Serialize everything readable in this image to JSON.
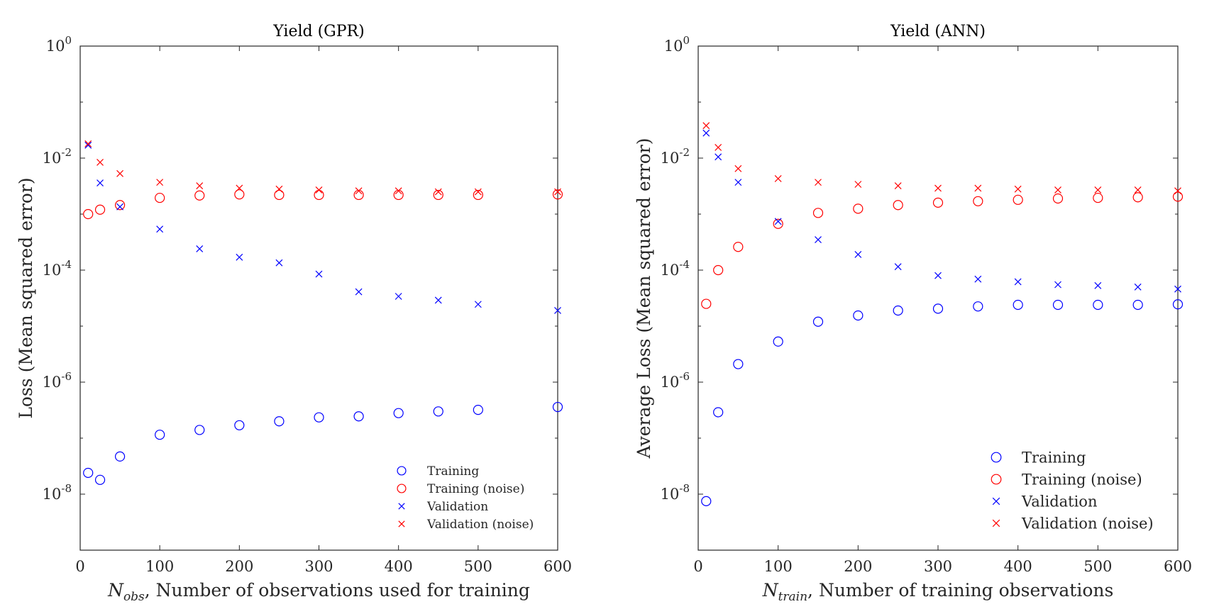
{
  "colors": {
    "training": "#0000ff",
    "training_noise": "#ff0000",
    "validation": "#0000ff",
    "validation_noise": "#ff0000",
    "axis": "#262626"
  },
  "chart_data": [
    {
      "type": "scatter",
      "title": "Yield (GPR)",
      "xlabel_prefix": "N",
      "xlabel_sub": "obs",
      "xlabel_rest": ", Number of observations used for training",
      "ylabel": "Loss (Mean squared error)",
      "xlim": [
        0,
        600
      ],
      "ylim": [
        1e-09,
        1
      ],
      "yscale": "log",
      "xticks": [
        0,
        100,
        200,
        300,
        400,
        500,
        600
      ],
      "yticks_exp": [
        0,
        -2,
        -4,
        -6,
        -8
      ],
      "legend_position": "bottom-right",
      "series": [
        {
          "name": "Training",
          "marker": "circle",
          "color": "#0000ff",
          "x": [
            10,
            25,
            50,
            100,
            150,
            200,
            250,
            300,
            350,
            400,
            450,
            500,
            600
          ],
          "y": [
            2.4e-08,
            1.8e-08,
            4.7e-08,
            1.15e-07,
            1.4e-07,
            1.7e-07,
            2e-07,
            2.35e-07,
            2.45e-07,
            2.8e-07,
            3e-07,
            3.2e-07,
            3.6e-07
          ]
        },
        {
          "name": "Training (noise)",
          "marker": "circle",
          "color": "#ff0000",
          "x": [
            10,
            25,
            50,
            100,
            150,
            200,
            250,
            300,
            350,
            400,
            450,
            500,
            600
          ],
          "y": [
            0.001,
            0.0012,
            0.00145,
            0.00195,
            0.00215,
            0.00225,
            0.0022,
            0.0022,
            0.0022,
            0.0022,
            0.0022,
            0.0022,
            0.00225
          ]
        },
        {
          "name": "Validation",
          "marker": "x",
          "color": "#0000ff",
          "x": [
            10,
            25,
            50,
            100,
            150,
            200,
            250,
            300,
            350,
            400,
            450,
            500,
            600
          ],
          "y": [
            0.017,
            0.0036,
            0.00135,
            0.00054,
            0.00024,
            0.00017,
            0.000135,
            8.5e-05,
            4.1e-05,
            3.4e-05,
            2.9e-05,
            2.45e-05,
            1.9e-05
          ]
        },
        {
          "name": "Validation (noise)",
          "marker": "x",
          "color": "#ff0000",
          "x": [
            10,
            25,
            50,
            100,
            150,
            200,
            250,
            300,
            350,
            400,
            450,
            500,
            600
          ],
          "y": [
            0.018,
            0.0084,
            0.0053,
            0.0037,
            0.0032,
            0.0029,
            0.0028,
            0.0027,
            0.0026,
            0.0026,
            0.0025,
            0.0025,
            0.0025
          ]
        }
      ]
    },
    {
      "type": "scatter",
      "title": "Yield (ANN)",
      "xlabel_prefix": "N",
      "xlabel_sub": "train",
      "xlabel_rest": ", Number of training observations",
      "ylabel": "Average Loss (Mean squared error)",
      "xlim": [
        0,
        600
      ],
      "ylim": [
        1e-09,
        1
      ],
      "yscale": "log",
      "xticks": [
        0,
        100,
        200,
        300,
        400,
        500,
        600
      ],
      "yticks_exp": [
        0,
        -2,
        -4,
        -6,
        -8
      ],
      "legend_position": "bottom-right",
      "series": [
        {
          "name": "Training",
          "marker": "circle",
          "color": "#0000ff",
          "x": [
            10,
            25,
            50,
            100,
            150,
            200,
            250,
            300,
            350,
            400,
            450,
            500,
            550,
            600
          ],
          "y": [
            7.5e-09,
            2.9e-07,
            2.1e-06,
            5.3e-06,
            1.2e-05,
            1.55e-05,
            1.9e-05,
            2.05e-05,
            2.25e-05,
            2.4e-05,
            2.4e-05,
            2.4e-05,
            2.4e-05,
            2.45e-05
          ]
        },
        {
          "name": "Training (noise)",
          "marker": "circle",
          "color": "#ff0000",
          "x": [
            10,
            25,
            50,
            100,
            150,
            200,
            250,
            300,
            350,
            400,
            450,
            500,
            550,
            600
          ],
          "y": [
            2.5e-05,
            0.0001,
            0.00026,
            0.00067,
            0.00105,
            0.00125,
            0.00145,
            0.0016,
            0.0017,
            0.0018,
            0.0019,
            0.00195,
            0.002,
            0.00205
          ]
        },
        {
          "name": "Validation",
          "marker": "x",
          "color": "#0000ff",
          "x": [
            10,
            25,
            50,
            100,
            150,
            200,
            250,
            300,
            350,
            400,
            450,
            500,
            550,
            600
          ],
          "y": [
            0.028,
            0.0105,
            0.0037,
            0.00074,
            0.00035,
            0.00019,
            0.000115,
            8e-05,
            6.9e-05,
            6.2e-05,
            5.5e-05,
            5.3e-05,
            5e-05,
            4.6e-05
          ]
        },
        {
          "name": "Validation (noise)",
          "marker": "x",
          "color": "#ff0000",
          "x": [
            10,
            25,
            50,
            100,
            150,
            200,
            250,
            300,
            350,
            400,
            450,
            500,
            550,
            600
          ],
          "y": [
            0.038,
            0.0155,
            0.0065,
            0.0043,
            0.0037,
            0.0034,
            0.0032,
            0.0029,
            0.0029,
            0.0028,
            0.0027,
            0.0027,
            0.0027,
            0.0026
          ]
        }
      ]
    }
  ]
}
